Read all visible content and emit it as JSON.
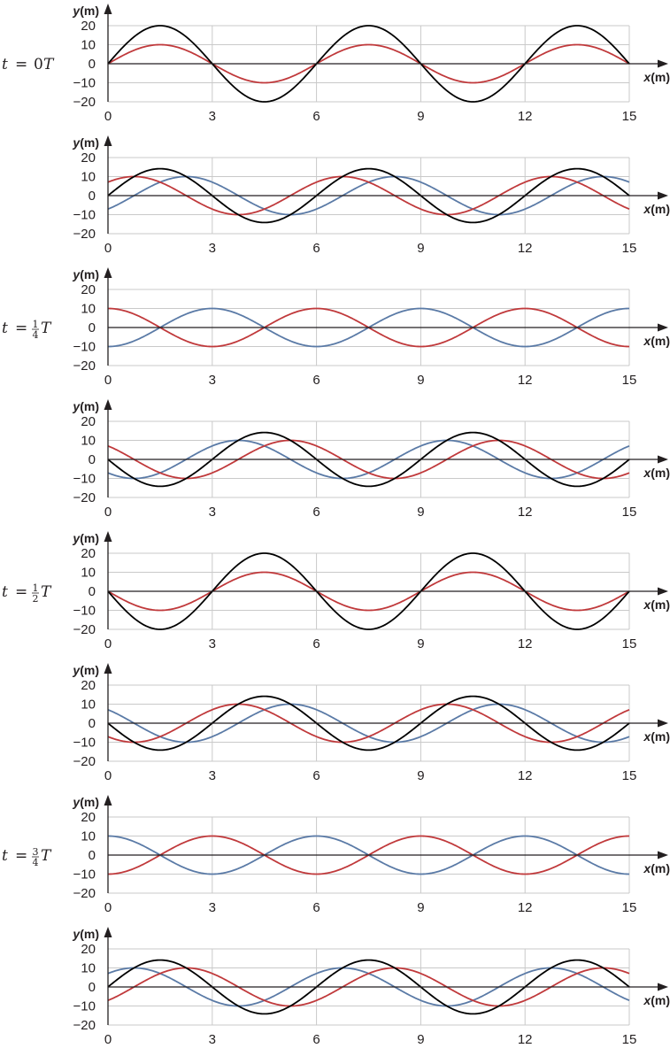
{
  "chart_data": [
    {
      "type": "line",
      "panel": 1,
      "time_label": {
        "prefix": "t = ",
        "num": "",
        "den": "",
        "text": "0",
        "suffix": "T"
      },
      "xlabel": "x(m)",
      "ylabel": "y(m)",
      "xlim": [
        0,
        15
      ],
      "ylim": [
        -20,
        20
      ],
      "xticks": [
        0,
        3,
        6,
        9,
        12,
        15
      ],
      "yticks": [
        20,
        10,
        0,
        -10,
        -20
      ],
      "grid": true,
      "series": [
        {
          "color": "#c0393b",
          "amplitude": 10,
          "wavelength": 6,
          "phase_x": 0
        },
        {
          "color": "#000000",
          "amplitude": 20,
          "wavelength": 6,
          "phase_x": 0
        }
      ]
    },
    {
      "type": "line",
      "panel": 2,
      "time_label": null,
      "xlabel": "x(m)",
      "ylabel": "y(m)",
      "xlim": [
        0,
        15
      ],
      "ylim": [
        -20,
        20
      ],
      "xticks": [
        0,
        3,
        6,
        9,
        12,
        15
      ],
      "yticks": [
        20,
        10,
        0,
        -10,
        -20
      ],
      "grid": true,
      "series": [
        {
          "color": "#5a7aa6",
          "amplitude": 10,
          "wavelength": 6,
          "phase_x": 0.75
        },
        {
          "color": "#c0393b",
          "amplitude": 10,
          "wavelength": 6,
          "phase_x": -0.75
        },
        {
          "color": "#000000",
          "amplitude": 14.14,
          "wavelength": 6,
          "phase_x": 0
        }
      ]
    },
    {
      "type": "line",
      "panel": 3,
      "time_label": {
        "prefix": "t = ",
        "num": "1",
        "den": "4",
        "text": "",
        "suffix": "T"
      },
      "xlabel": "x(m)",
      "ylabel": "y(m)",
      "xlim": [
        0,
        15
      ],
      "ylim": [
        -20,
        20
      ],
      "xticks": [
        0,
        3,
        6,
        9,
        12,
        15
      ],
      "yticks": [
        20,
        10,
        0,
        -10,
        -20
      ],
      "grid": true,
      "series": [
        {
          "color": "#5a7aa6",
          "amplitude": 10,
          "wavelength": 6,
          "phase_x": 1.5
        },
        {
          "color": "#c0393b",
          "amplitude": 10,
          "wavelength": 6,
          "phase_x": -1.5
        }
      ]
    },
    {
      "type": "line",
      "panel": 4,
      "time_label": null,
      "xlabel": "x(m)",
      "ylabel": "y(m)",
      "xlim": [
        0,
        15
      ],
      "ylim": [
        -20,
        20
      ],
      "xticks": [
        0,
        3,
        6,
        9,
        12,
        15
      ],
      "yticks": [
        20,
        10,
        0,
        -10,
        -20
      ],
      "grid": true,
      "series": [
        {
          "color": "#5a7aa6",
          "amplitude": 10,
          "wavelength": 6,
          "phase_x": 2.25
        },
        {
          "color": "#c0393b",
          "amplitude": 10,
          "wavelength": 6,
          "phase_x": -2.25
        },
        {
          "color": "#000000",
          "amplitude": 14.14,
          "wavelength": 6,
          "phase_x": 3
        }
      ]
    },
    {
      "type": "line",
      "panel": 5,
      "time_label": {
        "prefix": "t = ",
        "num": "1",
        "den": "2",
        "text": "",
        "suffix": "T"
      },
      "xlabel": "x(m)",
      "ylabel": "y(m)",
      "xlim": [
        0,
        15
      ],
      "ylim": [
        -20,
        20
      ],
      "xticks": [
        0,
        3,
        6,
        9,
        12,
        15
      ],
      "yticks": [
        20,
        10,
        0,
        -10,
        -20
      ],
      "grid": true,
      "series": [
        {
          "color": "#c0393b",
          "amplitude": 10,
          "wavelength": 6,
          "phase_x": 3
        },
        {
          "color": "#000000",
          "amplitude": 20,
          "wavelength": 6,
          "phase_x": 3
        }
      ]
    },
    {
      "type": "line",
      "panel": 6,
      "time_label": null,
      "xlabel": "x(m)",
      "ylabel": "y(m)",
      "xlim": [
        0,
        15
      ],
      "ylim": [
        -20,
        20
      ],
      "xticks": [
        0,
        3,
        6,
        9,
        12,
        15
      ],
      "yticks": [
        20,
        10,
        0,
        -10,
        -20
      ],
      "grid": true,
      "series": [
        {
          "color": "#5a7aa6",
          "amplitude": 10,
          "wavelength": 6,
          "phase_x": 3.75
        },
        {
          "color": "#c0393b",
          "amplitude": 10,
          "wavelength": 6,
          "phase_x": -3.75
        },
        {
          "color": "#000000",
          "amplitude": 14.14,
          "wavelength": 6,
          "phase_x": 3
        }
      ]
    },
    {
      "type": "line",
      "panel": 7,
      "time_label": {
        "prefix": "t = ",
        "num": "3",
        "den": "4",
        "text": "",
        "suffix": "T"
      },
      "xlabel": "x(m)",
      "ylabel": "y(m)",
      "xlim": [
        0,
        15
      ],
      "ylim": [
        -20,
        20
      ],
      "xticks": [
        0,
        3,
        6,
        9,
        12,
        15
      ],
      "yticks": [
        20,
        10,
        0,
        -10,
        -20
      ],
      "grid": true,
      "series": [
        {
          "color": "#5a7aa6",
          "amplitude": 10,
          "wavelength": 6,
          "phase_x": 4.5
        },
        {
          "color": "#c0393b",
          "amplitude": 10,
          "wavelength": 6,
          "phase_x": -4.5
        }
      ]
    },
    {
      "type": "line",
      "panel": 8,
      "time_label": null,
      "xlabel": "x(m)",
      "ylabel": "y(m)",
      "xlim": [
        0,
        15
      ],
      "ylim": [
        -20,
        20
      ],
      "xticks": [
        0,
        3,
        6,
        9,
        12,
        15
      ],
      "yticks": [
        20,
        10,
        0,
        -10,
        -20
      ],
      "grid": true,
      "series": [
        {
          "color": "#5a7aa6",
          "amplitude": 10,
          "wavelength": 6,
          "phase_x": 5.25
        },
        {
          "color": "#c0393b",
          "amplitude": 10,
          "wavelength": 6,
          "phase_x": -5.25
        },
        {
          "color": "#000000",
          "amplitude": 14.14,
          "wavelength": 6,
          "phase_x": 0
        }
      ]
    }
  ]
}
